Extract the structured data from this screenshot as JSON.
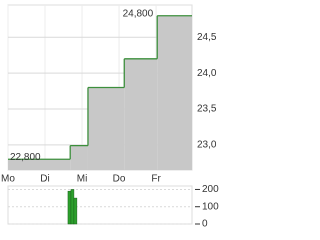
{
  "chart_data": [
    {
      "type": "line",
      "color": "#3c8f3c",
      "fill": "#c8c8c8",
      "grid": true,
      "x": [
        0,
        1.68,
        2.16,
        3.14,
        4.03
      ],
      "values": [
        22.8,
        22.99,
        23.8,
        24.2,
        24.8
      ],
      "xlim": [
        0,
        4.97
      ],
      "xticks": [
        {
          "value": 0,
          "label": "Mo"
        },
        {
          "value": 1,
          "label": "Di"
        },
        {
          "value": 2,
          "label": "Mi"
        },
        {
          "value": 3,
          "label": "Do"
        },
        {
          "value": 4,
          "label": "Fr"
        }
      ],
      "ylim": [
        22.65,
        24.95
      ],
      "yticks": [
        {
          "value": 23,
          "label": "23,0"
        },
        {
          "value": 23.5,
          "label": "23,5"
        },
        {
          "value": 24,
          "label": "24,0"
        },
        {
          "value": 24.5,
          "label": "24,5"
        }
      ],
      "annotations": [
        {
          "x": 0,
          "value": 22.8,
          "label": "22,800"
        },
        {
          "x": 4.03,
          "value": 24.8,
          "label": "24,800"
        }
      ]
    },
    {
      "type": "bar",
      "color": "#2ca02c",
      "grid": true,
      "x": [
        1.66,
        1.74,
        1.82
      ],
      "values": [
        190,
        200,
        150
      ],
      "xlim": [
        0,
        4.97
      ],
      "ylim": [
        0,
        220
      ],
      "yticks": [
        0,
        100,
        200
      ]
    }
  ]
}
